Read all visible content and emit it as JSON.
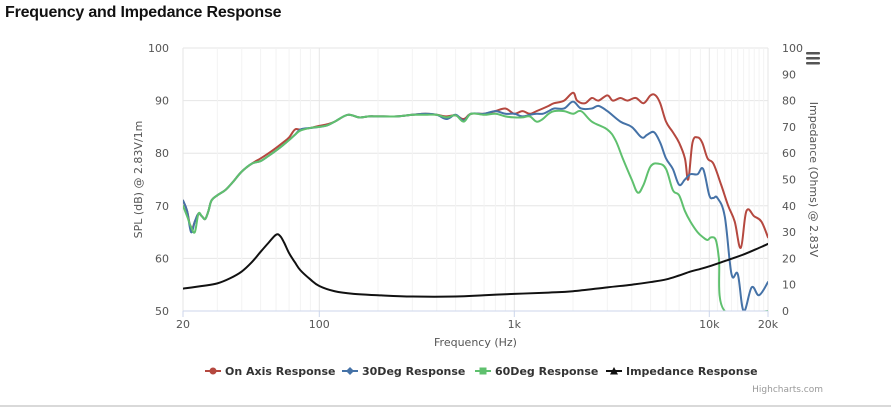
{
  "page": {
    "title": "Frequency and Impedance Response"
  },
  "menu_icon": "hamburger-menu-icon",
  "credit": "Highcharts.com",
  "chart_data": {
    "type": "line",
    "x_scale": "log",
    "xlabel": "Frequency (Hz)",
    "xlim": [
      20,
      20000
    ],
    "x_ticks": [
      {
        "value": 20,
        "label": "20"
      },
      {
        "value": 100,
        "label": "100"
      },
      {
        "value": 1000,
        "label": "1k"
      },
      {
        "value": 10000,
        "label": "10k"
      },
      {
        "value": 20000,
        "label": "20k"
      }
    ],
    "ylabel_left": "SPL (dB) @ 2.83V/1m",
    "ylim_left": [
      50,
      100
    ],
    "yticks_left": [
      "50",
      "60",
      "70",
      "80",
      "90",
      "100"
    ],
    "ylabel_right": "Impedance (Ohms) @ 2.83V",
    "ylim_right": [
      0,
      100
    ],
    "yticks_right": [
      "0",
      "10",
      "20",
      "30",
      "40",
      "50",
      "60",
      "70",
      "80",
      "90",
      "100"
    ],
    "grid": true,
    "legend_position": "bottom",
    "series": [
      {
        "name": "On Axis Response",
        "color": "#b5483f",
        "axis": "left",
        "points": [
          [
            20,
            71
          ],
          [
            21,
            69
          ],
          [
            22,
            65.5
          ],
          [
            23,
            67
          ],
          [
            24,
            68.5
          ],
          [
            25,
            68
          ],
          [
            26,
            67.5
          ],
          [
            27,
            69
          ],
          [
            28,
            71
          ],
          [
            30,
            72
          ],
          [
            33,
            73
          ],
          [
            36,
            74.5
          ],
          [
            40,
            76.5
          ],
          [
            45,
            78
          ],
          [
            50,
            79
          ],
          [
            55,
            80
          ],
          [
            60,
            81
          ],
          [
            65,
            82
          ],
          [
            70,
            83
          ],
          [
            75,
            84.5
          ],
          [
            80,
            84.5
          ],
          [
            90,
            84.8
          ],
          [
            100,
            85.2
          ],
          [
            110,
            85.5
          ],
          [
            120,
            86
          ],
          [
            140,
            87.3
          ],
          [
            160,
            86.8
          ],
          [
            180,
            87
          ],
          [
            200,
            87
          ],
          [
            250,
            87
          ],
          [
            300,
            87.3
          ],
          [
            350,
            87.5
          ],
          [
            400,
            87.3
          ],
          [
            450,
            87
          ],
          [
            500,
            87.2
          ],
          [
            550,
            86.5
          ],
          [
            600,
            87.5
          ],
          [
            700,
            87.5
          ],
          [
            800,
            88
          ],
          [
            900,
            88.5
          ],
          [
            1000,
            87.5
          ],
          [
            1100,
            88
          ],
          [
            1200,
            87.5
          ],
          [
            1300,
            88
          ],
          [
            1400,
            88.5
          ],
          [
            1500,
            89
          ],
          [
            1600,
            89.5
          ],
          [
            1800,
            90
          ],
          [
            2000,
            91.5
          ],
          [
            2100,
            90
          ],
          [
            2300,
            89.5
          ],
          [
            2500,
            90.5
          ],
          [
            2700,
            90
          ],
          [
            3000,
            91
          ],
          [
            3200,
            90
          ],
          [
            3500,
            90.5
          ],
          [
            3800,
            90
          ],
          [
            4200,
            90.5
          ],
          [
            4600,
            89.5
          ],
          [
            5000,
            91
          ],
          [
            5300,
            91
          ],
          [
            5600,
            89.5
          ],
          [
            6000,
            86
          ],
          [
            6500,
            84
          ],
          [
            7000,
            82
          ],
          [
            7500,
            79
          ],
          [
            7800,
            75
          ],
          [
            8200,
            82
          ],
          [
            8700,
            83
          ],
          [
            9200,
            82
          ],
          [
            9800,
            79
          ],
          [
            10500,
            78
          ],
          [
            11500,
            74
          ],
          [
            12500,
            70
          ],
          [
            13500,
            67
          ],
          [
            14500,
            62
          ],
          [
            15500,
            69
          ],
          [
            17000,
            68
          ],
          [
            18500,
            67
          ],
          [
            20000,
            64
          ]
        ]
      },
      {
        "name": "30Deg Response",
        "color": "#4572a7",
        "axis": "left",
        "points": [
          [
            20,
            71
          ],
          [
            21,
            69
          ],
          [
            22,
            65
          ],
          [
            23,
            67
          ],
          [
            24,
            68.5
          ],
          [
            25,
            68
          ],
          [
            26,
            67.5
          ],
          [
            27,
            69
          ],
          [
            28,
            71
          ],
          [
            30,
            72
          ],
          [
            33,
            73
          ],
          [
            36,
            74.5
          ],
          [
            40,
            76.5
          ],
          [
            45,
            78
          ],
          [
            50,
            78.5
          ],
          [
            55,
            79.5
          ],
          [
            60,
            80.5
          ],
          [
            65,
            81.5
          ],
          [
            70,
            82.5
          ],
          [
            75,
            83.5
          ],
          [
            80,
            84.5
          ],
          [
            90,
            84.8
          ],
          [
            100,
            85
          ],
          [
            110,
            85.3
          ],
          [
            120,
            86
          ],
          [
            140,
            87.3
          ],
          [
            160,
            86.8
          ],
          [
            180,
            87
          ],
          [
            200,
            87
          ],
          [
            250,
            87
          ],
          [
            300,
            87.3
          ],
          [
            350,
            87.5
          ],
          [
            400,
            87.3
          ],
          [
            450,
            86.5
          ],
          [
            500,
            87.3
          ],
          [
            550,
            86.2
          ],
          [
            600,
            87.5
          ],
          [
            700,
            87.5
          ],
          [
            800,
            88
          ],
          [
            900,
            87.5
          ],
          [
            1000,
            87.5
          ],
          [
            1100,
            87
          ],
          [
            1200,
            87.3
          ],
          [
            1300,
            87.5
          ],
          [
            1400,
            87.5
          ],
          [
            1500,
            88
          ],
          [
            1600,
            88.5
          ],
          [
            1800,
            88.5
          ],
          [
            2000,
            89.8
          ],
          [
            2200,
            88.5
          ],
          [
            2500,
            88.5
          ],
          [
            2700,
            89
          ],
          [
            3000,
            88
          ],
          [
            3500,
            86
          ],
          [
            4000,
            85
          ],
          [
            4500,
            83
          ],
          [
            4800,
            83.5
          ],
          [
            5200,
            84
          ],
          [
            5600,
            82
          ],
          [
            6000,
            79
          ],
          [
            6500,
            77
          ],
          [
            7000,
            74
          ],
          [
            7500,
            75
          ],
          [
            8000,
            76
          ],
          [
            8700,
            76
          ],
          [
            9300,
            77
          ],
          [
            10000,
            72
          ],
          [
            10500,
            71.5
          ],
          [
            11000,
            71.5
          ],
          [
            12000,
            68
          ],
          [
            13000,
            57
          ],
          [
            14000,
            57
          ],
          [
            15000,
            50
          ],
          [
            16500,
            54.5
          ],
          [
            18000,
            53
          ],
          [
            20000,
            55.5
          ]
        ]
      },
      {
        "name": "60Deg Response",
        "color": "#5fc06e",
        "axis": "left",
        "points": [
          [
            20,
            70
          ],
          [
            21,
            68
          ],
          [
            22,
            66
          ],
          [
            23,
            65
          ],
          [
            24,
            68.5
          ],
          [
            25,
            68
          ],
          [
            26,
            67.5
          ],
          [
            27,
            69
          ],
          [
            28,
            71
          ],
          [
            30,
            72
          ],
          [
            33,
            73
          ],
          [
            36,
            74.5
          ],
          [
            40,
            76.5
          ],
          [
            45,
            78
          ],
          [
            50,
            78.5
          ],
          [
            55,
            79.5
          ],
          [
            60,
            80.5
          ],
          [
            65,
            81.5
          ],
          [
            70,
            82.5
          ],
          [
            75,
            83.5
          ],
          [
            80,
            84.3
          ],
          [
            90,
            84.8
          ],
          [
            100,
            85
          ],
          [
            110,
            85.3
          ],
          [
            120,
            86
          ],
          [
            140,
            87.3
          ],
          [
            160,
            86.8
          ],
          [
            180,
            87
          ],
          [
            200,
            87
          ],
          [
            250,
            87
          ],
          [
            300,
            87.3
          ],
          [
            350,
            87.3
          ],
          [
            400,
            87.3
          ],
          [
            450,
            86.8
          ],
          [
            500,
            87.2
          ],
          [
            550,
            86
          ],
          [
            600,
            87.5
          ],
          [
            700,
            87.3
          ],
          [
            800,
            87.5
          ],
          [
            900,
            87
          ],
          [
            1000,
            86.8
          ],
          [
            1100,
            86.8
          ],
          [
            1200,
            87
          ],
          [
            1300,
            86
          ],
          [
            1400,
            86.5
          ],
          [
            1500,
            87.5
          ],
          [
            1600,
            88
          ],
          [
            1800,
            88
          ],
          [
            2000,
            87.5
          ],
          [
            2200,
            88
          ],
          [
            2500,
            86
          ],
          [
            3000,
            84.5
          ],
          [
            3300,
            82.5
          ],
          [
            3600,
            79
          ],
          [
            4000,
            75
          ],
          [
            4300,
            72.5
          ],
          [
            4600,
            74
          ],
          [
            5000,
            77.5
          ],
          [
            5500,
            78
          ],
          [
            6000,
            77
          ],
          [
            6500,
            73
          ],
          [
            7000,
            72
          ],
          [
            7500,
            69
          ],
          [
            8000,
            67
          ],
          [
            8700,
            65
          ],
          [
            9300,
            64
          ],
          [
            9800,
            63.5
          ],
          [
            10200,
            64
          ],
          [
            10800,
            63.5
          ],
          [
            11200,
            60
          ],
          [
            12000,
            50
          ],
          [
            20000,
            50
          ]
        ]
      },
      {
        "name": "Impedance Response",
        "color": "#111111",
        "axis": "right",
        "points": [
          [
            20,
            8.5
          ],
          [
            25,
            9.5
          ],
          [
            30,
            10.5
          ],
          [
            35,
            12.5
          ],
          [
            40,
            15
          ],
          [
            45,
            18.5
          ],
          [
            50,
            22.5
          ],
          [
            55,
            26
          ],
          [
            60,
            29
          ],
          [
            63,
            28.5
          ],
          [
            66,
            26
          ],
          [
            70,
            22
          ],
          [
            75,
            18.5
          ],
          [
            80,
            15.5
          ],
          [
            90,
            12
          ],
          [
            100,
            9.5
          ],
          [
            120,
            7.5
          ],
          [
            150,
            6.5
          ],
          [
            200,
            6
          ],
          [
            300,
            5.5
          ],
          [
            500,
            5.5
          ],
          [
            700,
            6
          ],
          [
            1000,
            6.5
          ],
          [
            1500,
            7
          ],
          [
            2000,
            7.5
          ],
          [
            3000,
            9
          ],
          [
            4000,
            10
          ],
          [
            5000,
            11
          ],
          [
            6000,
            12
          ],
          [
            7000,
            13.5
          ],
          [
            8000,
            15
          ],
          [
            9000,
            16
          ],
          [
            10000,
            17
          ],
          [
            12000,
            19
          ],
          [
            15000,
            21.5
          ],
          [
            18000,
            24
          ],
          [
            20000,
            25.5
          ]
        ]
      }
    ]
  }
}
